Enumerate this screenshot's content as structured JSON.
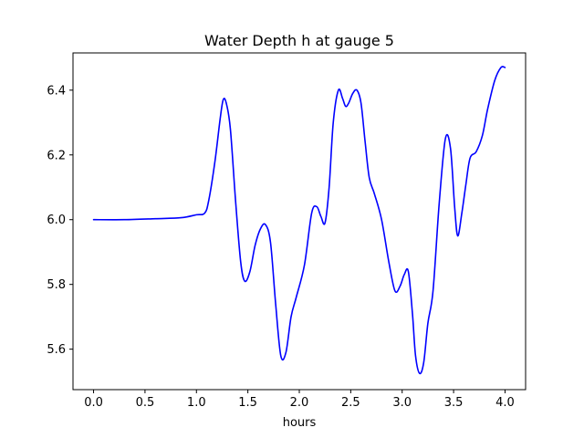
{
  "chart_data": {
    "type": "line",
    "title": "Water Depth h at gauge 5",
    "xlabel": "hours",
    "ylabel": "",
    "xlim": [
      -0.2,
      4.2
    ],
    "ylim": [
      5.475,
      6.515
    ],
    "xticks": [
      0.0,
      0.5,
      1.0,
      1.5,
      2.0,
      2.5,
      3.0,
      3.5,
      4.0
    ],
    "xtick_labels": [
      "0.0",
      "0.5",
      "1.0",
      "1.5",
      "2.0",
      "2.5",
      "3.0",
      "3.5",
      "4.0"
    ],
    "yticks": [
      5.6,
      5.8,
      6.0,
      6.2,
      6.4
    ],
    "ytick_labels": [
      "5.6",
      "5.8",
      "6.0",
      "6.2",
      "6.4"
    ],
    "grid": false,
    "series": [
      {
        "color": "#0000ff",
        "x": [
          0.0,
          0.3,
          0.6,
          0.85,
          1.0,
          1.08,
          1.12,
          1.18,
          1.23,
          1.26,
          1.29,
          1.33,
          1.38,
          1.43,
          1.47,
          1.52,
          1.57,
          1.62,
          1.67,
          1.72,
          1.77,
          1.82,
          1.87,
          1.92,
          1.97,
          2.05,
          2.12,
          2.17,
          2.21,
          2.25,
          2.29,
          2.33,
          2.38,
          2.42,
          2.45,
          2.48,
          2.52,
          2.56,
          2.6,
          2.64,
          2.68,
          2.73,
          2.8,
          2.87,
          2.93,
          2.98,
          3.02,
          3.06,
          3.1,
          3.13,
          3.17,
          3.21,
          3.25,
          3.3,
          3.36,
          3.42,
          3.47,
          3.51,
          3.54,
          3.58,
          3.62,
          3.66,
          3.72,
          3.78,
          3.83,
          3.9,
          3.96,
          4.0
        ],
        "values": [
          6.0,
          6.0,
          6.003,
          6.006,
          6.015,
          6.02,
          6.06,
          6.18,
          6.31,
          6.37,
          6.36,
          6.28,
          6.06,
          5.87,
          5.81,
          5.84,
          5.92,
          5.97,
          5.985,
          5.93,
          5.74,
          5.58,
          5.59,
          5.7,
          5.76,
          5.86,
          6.02,
          6.04,
          6.01,
          5.99,
          6.1,
          6.3,
          6.4,
          6.375,
          6.35,
          6.36,
          6.39,
          6.4,
          6.36,
          6.24,
          6.13,
          6.08,
          6.0,
          5.87,
          5.78,
          5.795,
          5.83,
          5.84,
          5.71,
          5.58,
          5.525,
          5.56,
          5.68,
          5.78,
          6.05,
          6.25,
          6.22,
          6.04,
          5.95,
          6.02,
          6.11,
          6.19,
          6.21,
          6.26,
          6.34,
          6.43,
          6.47,
          6.47
        ]
      }
    ]
  }
}
